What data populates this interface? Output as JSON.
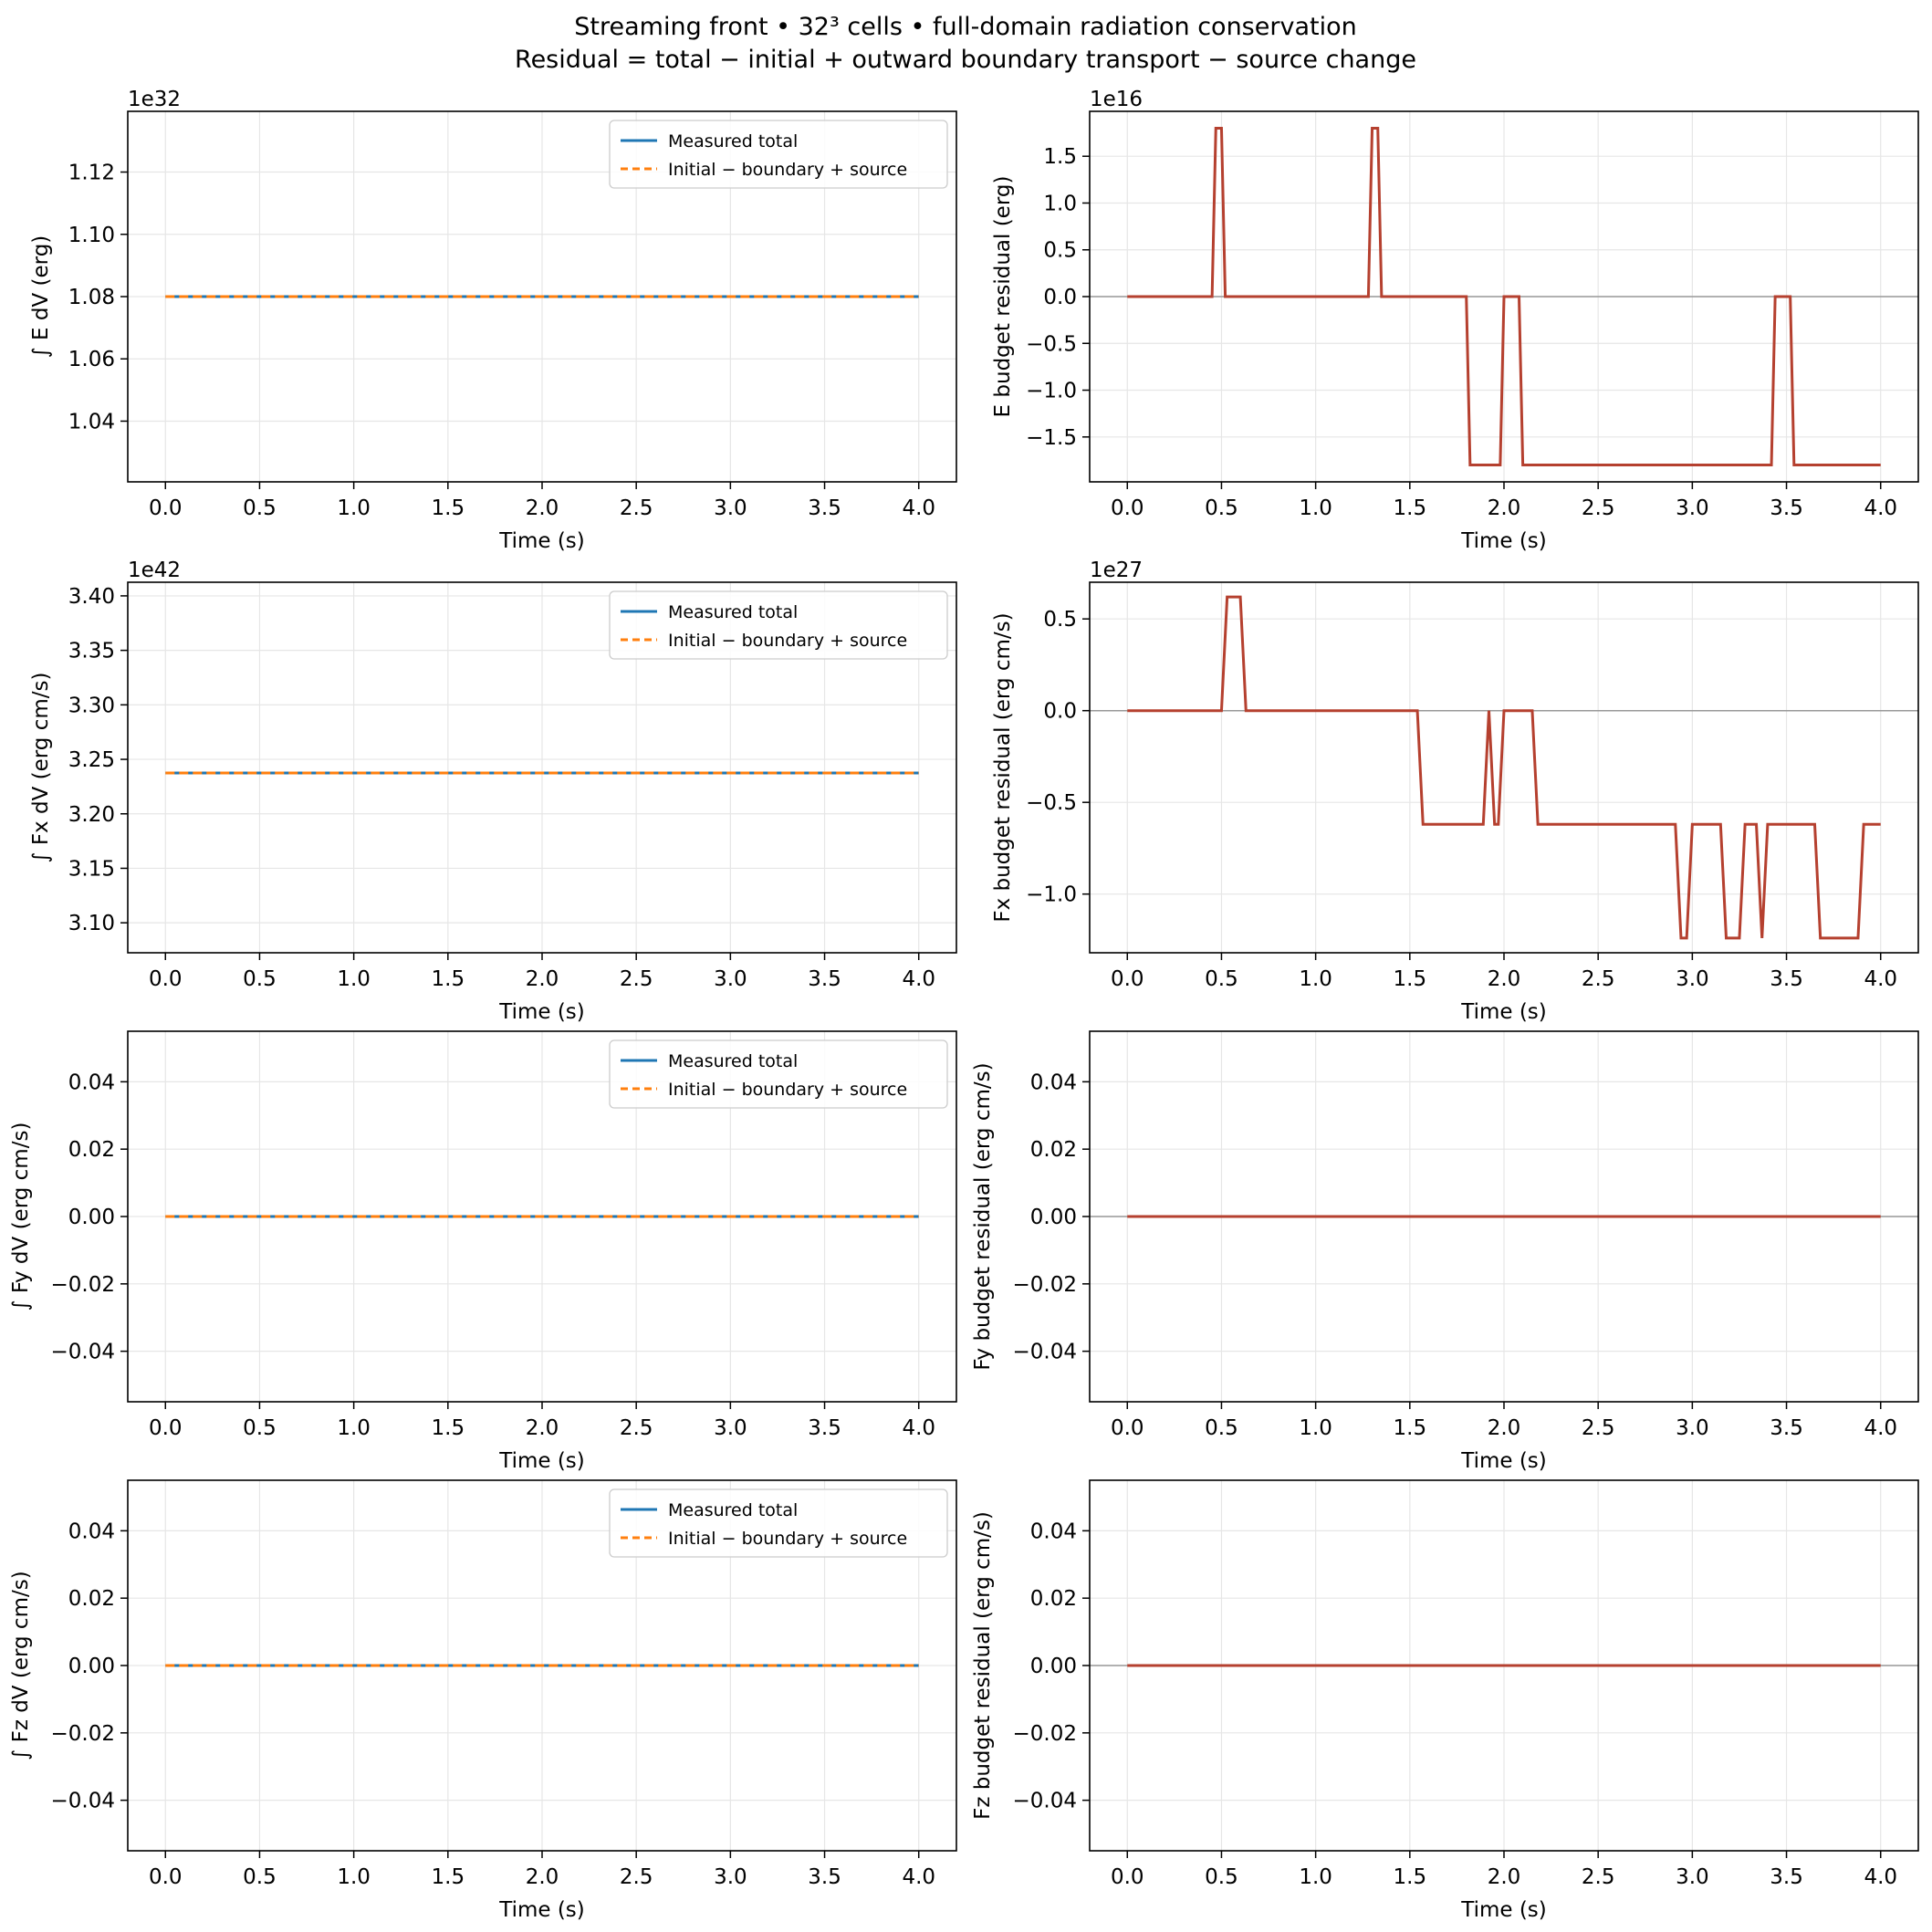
{
  "figure": {
    "title_line1": "Streaming front • 32³ cells • full-domain radiation conservation",
    "title_line2": "Residual = total − initial + outward boundary transport − source change"
  },
  "colors": {
    "measured": "#1f77b4",
    "predicted": "#ff7f0e",
    "residual": "#b5402f",
    "zero_line": "#999999",
    "grid": "#e6e6e6"
  },
  "chart_data": [
    {
      "type": "line",
      "xlabel": "Time (s)",
      "ylabel": "∫ E dV (erg)",
      "offset_label": "1e32",
      "xlim": [
        -0.2,
        4.2
      ],
      "ylim": [
        1.0205,
        1.1395
      ],
      "xticks": [
        0.0,
        0.5,
        1.0,
        1.5,
        2.0,
        2.5,
        3.0,
        3.5,
        4.0
      ],
      "xtick_labels": [
        "0.0",
        "0.5",
        "1.0",
        "1.5",
        "2.0",
        "2.5",
        "3.0",
        "3.5",
        "4.0"
      ],
      "yticks": [
        1.04,
        1.06,
        1.08,
        1.1,
        1.12
      ],
      "ytick_labels": [
        "1.04",
        "1.06",
        "1.08",
        "1.10",
        "1.12"
      ],
      "legend": {
        "position": "upper right",
        "entries": [
          "Measured total",
          "Initial − boundary + source"
        ]
      },
      "series": [
        {
          "name": "Measured total",
          "style": "solid",
          "x": [
            0,
            4
          ],
          "y": [
            1.08,
            1.08
          ]
        },
        {
          "name": "Initial − boundary + source",
          "style": "dashed",
          "x": [
            0,
            4
          ],
          "y": [
            1.08,
            1.08
          ]
        }
      ]
    },
    {
      "type": "line",
      "xlabel": "Time (s)",
      "ylabel": "E budget residual (erg)",
      "offset_label": "1e16",
      "xlim": [
        -0.2,
        4.2
      ],
      "ylim": [
        -1.98,
        1.98
      ],
      "xticks": [
        0.0,
        0.5,
        1.0,
        1.5,
        2.0,
        2.5,
        3.0,
        3.5,
        4.0
      ],
      "xtick_labels": [
        "0.0",
        "0.5",
        "1.0",
        "1.5",
        "2.0",
        "2.5",
        "3.0",
        "3.5",
        "4.0"
      ],
      "yticks": [
        -1.5,
        -1.0,
        -0.5,
        0.0,
        0.5,
        1.0,
        1.5
      ],
      "ytick_labels": [
        "−1.5",
        "−1.0",
        "−0.5",
        "0.0",
        "0.5",
        "1.0",
        "1.5"
      ],
      "zero_line": true,
      "series": [
        {
          "style": "solid",
          "x": [
            0,
            0.45,
            0.47,
            0.5,
            0.52,
            1.28,
            1.3,
            1.33,
            1.35,
            1.8,
            1.82,
            1.98,
            2.0,
            2.08,
            2.1,
            3.42,
            3.44,
            3.52,
            3.54,
            4.0
          ],
          "y": [
            0,
            0,
            1.8,
            1.8,
            0,
            0,
            1.8,
            1.8,
            0,
            0,
            -1.8,
            -1.8,
            0,
            0,
            -1.8,
            -1.8,
            0,
            0,
            -1.8,
            -1.8
          ]
        }
      ]
    },
    {
      "type": "line",
      "xlabel": "Time (s)",
      "ylabel": "∫ Fx dV (erg cm/s)",
      "offset_label": "1e42",
      "xlim": [
        -0.2,
        4.2
      ],
      "ylim": [
        3.0725,
        3.4125
      ],
      "xticks": [
        0.0,
        0.5,
        1.0,
        1.5,
        2.0,
        2.5,
        3.0,
        3.5,
        4.0
      ],
      "xtick_labels": [
        "0.0",
        "0.5",
        "1.0",
        "1.5",
        "2.0",
        "2.5",
        "3.0",
        "3.5",
        "4.0"
      ],
      "yticks": [
        3.1,
        3.15,
        3.2,
        3.25,
        3.3,
        3.35,
        3.4
      ],
      "ytick_labels": [
        "3.10",
        "3.15",
        "3.20",
        "3.25",
        "3.30",
        "3.35",
        "3.40"
      ],
      "legend": {
        "position": "upper right",
        "entries": [
          "Measured total",
          "Initial − boundary + source"
        ]
      },
      "series": [
        {
          "name": "Measured total",
          "style": "solid",
          "x": [
            0,
            4
          ],
          "y": [
            3.2375,
            3.2375
          ]
        },
        {
          "name": "Initial − boundary + source",
          "style": "dashed",
          "x": [
            0,
            4
          ],
          "y": [
            3.2375,
            3.2375
          ]
        }
      ]
    },
    {
      "type": "line",
      "xlabel": "Time (s)",
      "ylabel": "Fx budget residual (erg cm/s)",
      "offset_label": "1e27",
      "xlim": [
        -0.2,
        4.2
      ],
      "ylim": [
        -1.32,
        0.7
      ],
      "xticks": [
        0.0,
        0.5,
        1.0,
        1.5,
        2.0,
        2.5,
        3.0,
        3.5,
        4.0
      ],
      "xtick_labels": [
        "0.0",
        "0.5",
        "1.0",
        "1.5",
        "2.0",
        "2.5",
        "3.0",
        "3.5",
        "4.0"
      ],
      "yticks": [
        -1.0,
        -0.5,
        0.0,
        0.5
      ],
      "ytick_labels": [
        "−1.0",
        "−0.5",
        "0.0",
        "0.5"
      ],
      "zero_line": true,
      "series": [
        {
          "style": "solid",
          "x": [
            0,
            0.5,
            0.53,
            0.6,
            0.63,
            1.54,
            1.57,
            1.89,
            1.92,
            1.95,
            1.97,
            2.0,
            2.15,
            2.18,
            2.91,
            2.94,
            2.97,
            3.0,
            3.15,
            3.18,
            3.25,
            3.28,
            3.34,
            3.37,
            3.4,
            3.65,
            3.68,
            3.88,
            3.91,
            4.0
          ],
          "y": [
            0,
            0,
            0.62,
            0.62,
            0,
            0,
            -0.62,
            -0.62,
            0,
            -0.62,
            -0.62,
            0,
            0,
            -0.62,
            -0.62,
            -1.24,
            -1.24,
            -0.62,
            -0.62,
            -1.24,
            -1.24,
            -0.62,
            -0.62,
            -1.24,
            -0.62,
            -0.62,
            -1.24,
            -1.24,
            -0.62,
            -0.62
          ]
        }
      ]
    },
    {
      "type": "line",
      "xlabel": "Time (s)",
      "ylabel": "∫ Fy dV (erg cm/s)",
      "offset_label": "",
      "xlim": [
        -0.2,
        4.2
      ],
      "ylim": [
        -0.055,
        0.055
      ],
      "xticks": [
        0.0,
        0.5,
        1.0,
        1.5,
        2.0,
        2.5,
        3.0,
        3.5,
        4.0
      ],
      "xtick_labels": [
        "0.0",
        "0.5",
        "1.0",
        "1.5",
        "2.0",
        "2.5",
        "3.0",
        "3.5",
        "4.0"
      ],
      "yticks": [
        -0.04,
        -0.02,
        0.0,
        0.02,
        0.04
      ],
      "ytick_labels": [
        "−0.04",
        "−0.02",
        "0.00",
        "0.02",
        "0.04"
      ],
      "legend": {
        "position": "upper right",
        "entries": [
          "Measured total",
          "Initial − boundary + source"
        ]
      },
      "series": [
        {
          "name": "Measured total",
          "style": "solid",
          "x": [
            0,
            4
          ],
          "y": [
            0,
            0
          ]
        },
        {
          "name": "Initial − boundary + source",
          "style": "dashed",
          "x": [
            0,
            4
          ],
          "y": [
            0,
            0
          ]
        }
      ]
    },
    {
      "type": "line",
      "xlabel": "Time (s)",
      "ylabel": "Fy budget residual (erg cm/s)",
      "offset_label": "",
      "xlim": [
        -0.2,
        4.2
      ],
      "ylim": [
        -0.055,
        0.055
      ],
      "xticks": [
        0.0,
        0.5,
        1.0,
        1.5,
        2.0,
        2.5,
        3.0,
        3.5,
        4.0
      ],
      "xtick_labels": [
        "0.0",
        "0.5",
        "1.0",
        "1.5",
        "2.0",
        "2.5",
        "3.0",
        "3.5",
        "4.0"
      ],
      "yticks": [
        -0.04,
        -0.02,
        0.0,
        0.02,
        0.04
      ],
      "ytick_labels": [
        "−0.04",
        "−0.02",
        "0.00",
        "0.02",
        "0.04"
      ],
      "zero_line": true,
      "series": [
        {
          "style": "solid",
          "x": [
            0,
            4
          ],
          "y": [
            0,
            0
          ]
        }
      ]
    },
    {
      "type": "line",
      "xlabel": "Time (s)",
      "ylabel": "∫ Fz dV (erg cm/s)",
      "offset_label": "",
      "xlim": [
        -0.2,
        4.2
      ],
      "ylim": [
        -0.055,
        0.055
      ],
      "xticks": [
        0.0,
        0.5,
        1.0,
        1.5,
        2.0,
        2.5,
        3.0,
        3.5,
        4.0
      ],
      "xtick_labels": [
        "0.0",
        "0.5",
        "1.0",
        "1.5",
        "2.0",
        "2.5",
        "3.0",
        "3.5",
        "4.0"
      ],
      "yticks": [
        -0.04,
        -0.02,
        0.0,
        0.02,
        0.04
      ],
      "ytick_labels": [
        "−0.04",
        "−0.02",
        "0.00",
        "0.02",
        "0.04"
      ],
      "legend": {
        "position": "upper right",
        "entries": [
          "Measured total",
          "Initial − boundary + source"
        ]
      },
      "series": [
        {
          "name": "Measured total",
          "style": "solid",
          "x": [
            0,
            4
          ],
          "y": [
            0,
            0
          ]
        },
        {
          "name": "Initial − boundary + source",
          "style": "dashed",
          "x": [
            0,
            4
          ],
          "y": [
            0,
            0
          ]
        }
      ]
    },
    {
      "type": "line",
      "xlabel": "Time (s)",
      "ylabel": "Fz budget residual (erg cm/s)",
      "offset_label": "",
      "xlim": [
        -0.2,
        4.2
      ],
      "ylim": [
        -0.055,
        0.055
      ],
      "xticks": [
        0.0,
        0.5,
        1.0,
        1.5,
        2.0,
        2.5,
        3.0,
        3.5,
        4.0
      ],
      "xtick_labels": [
        "0.0",
        "0.5",
        "1.0",
        "1.5",
        "2.0",
        "2.5",
        "3.0",
        "3.5",
        "4.0"
      ],
      "yticks": [
        -0.04,
        -0.02,
        0.0,
        0.02,
        0.04
      ],
      "ytick_labels": [
        "−0.04",
        "−0.02",
        "0.00",
        "0.02",
        "0.04"
      ],
      "zero_line": true,
      "series": [
        {
          "style": "solid",
          "x": [
            0,
            4
          ],
          "y": [
            0,
            0
          ]
        }
      ]
    }
  ]
}
